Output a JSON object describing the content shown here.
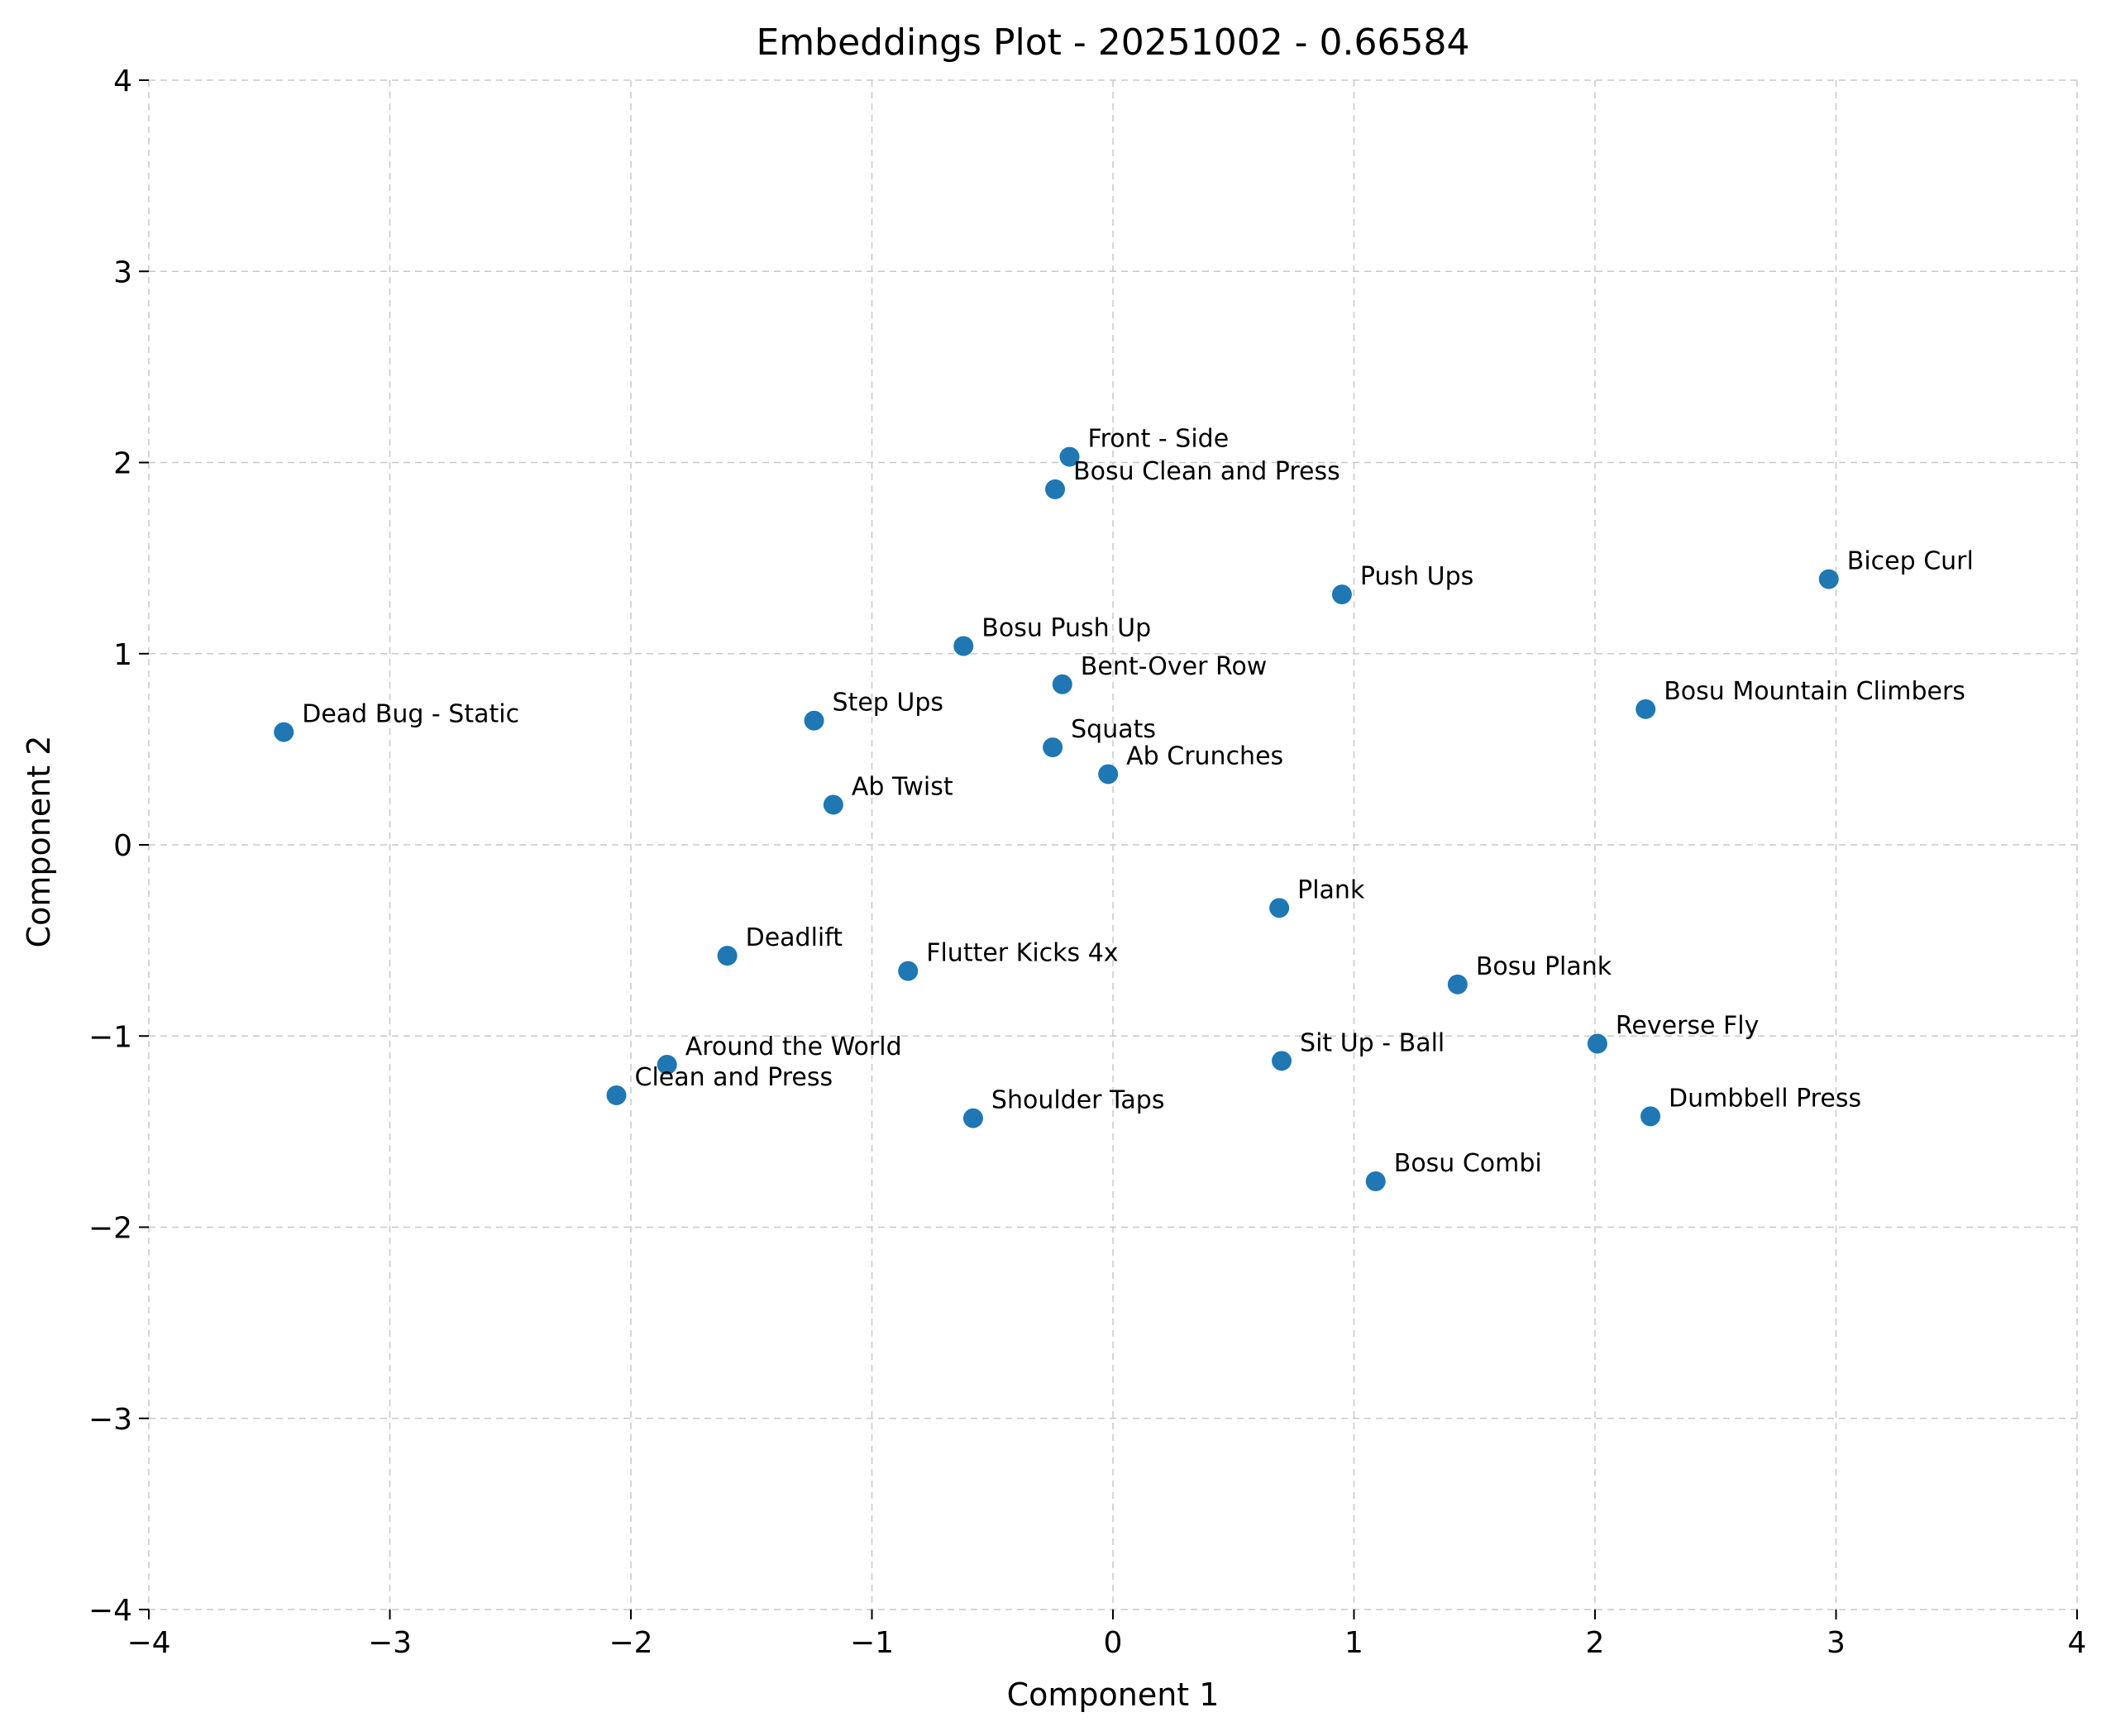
{
  "chart_data": {
    "type": "scatter",
    "title": "Embeddings Plot - 20251002 - 0.66584",
    "xlabel": "Component 1",
    "ylabel": "Component 2",
    "xlim": [
      -4,
      4
    ],
    "ylim": [
      -4,
      4
    ],
    "xticks": [
      -4,
      -3,
      -2,
      -1,
      0,
      1,
      2,
      3,
      4
    ],
    "yticks": [
      -4,
      -3,
      -2,
      -1,
      0,
      1,
      2,
      3,
      4
    ],
    "xtick_labels": [
      "−4",
      "−3",
      "−2",
      "−1",
      "0",
      "1",
      "2",
      "3",
      "4"
    ],
    "ytick_labels": [
      "−4",
      "−3",
      "−2",
      "−1",
      "0",
      "1",
      "2",
      "3",
      "4"
    ],
    "grid": true,
    "color": "#1f77b4",
    "points": [
      {
        "label": "Front - Side",
        "x": -0.18,
        "y": 2.03
      },
      {
        "label": "Bosu Clean and Press",
        "x": -0.24,
        "y": 1.86
      },
      {
        "label": "Push Ups",
        "x": 0.95,
        "y": 1.31
      },
      {
        "label": "Bicep Curl",
        "x": 2.97,
        "y": 1.39
      },
      {
        "label": "Bosu Push Up",
        "x": -0.62,
        "y": 1.04
      },
      {
        "label": "Bent-Over Row",
        "x": -0.21,
        "y": 0.84
      },
      {
        "label": "Bosu Mountain Climbers",
        "x": 2.21,
        "y": 0.71
      },
      {
        "label": "Dead Bug - Static",
        "x": -3.44,
        "y": 0.59
      },
      {
        "label": "Step Ups",
        "x": -1.24,
        "y": 0.65
      },
      {
        "label": "Squats",
        "x": -0.25,
        "y": 0.51
      },
      {
        "label": "Ab Crunches",
        "x": -0.02,
        "y": 0.37
      },
      {
        "label": "Ab Twist",
        "x": -1.16,
        "y": 0.21
      },
      {
        "label": "Plank",
        "x": 0.69,
        "y": -0.33
      },
      {
        "label": "Deadlift",
        "x": -1.6,
        "y": -0.58
      },
      {
        "label": "Flutter Kicks 4x",
        "x": -0.85,
        "y": -0.66
      },
      {
        "label": "Bosu Plank",
        "x": 1.43,
        "y": -0.73
      },
      {
        "label": "Reverse Fly",
        "x": 2.01,
        "y": -1.04
      },
      {
        "label": "Around the World",
        "x": -1.85,
        "y": -1.15
      },
      {
        "label": "Sit Up - Ball",
        "x": 0.7,
        "y": -1.13
      },
      {
        "label": "Clean and Press",
        "x": -2.06,
        "y": -1.31
      },
      {
        "label": "Shoulder Taps",
        "x": -0.58,
        "y": -1.43
      },
      {
        "label": "Dumbbell Press",
        "x": 2.23,
        "y": -1.42
      },
      {
        "label": "Bosu Combi",
        "x": 1.09,
        "y": -1.76
      }
    ]
  }
}
